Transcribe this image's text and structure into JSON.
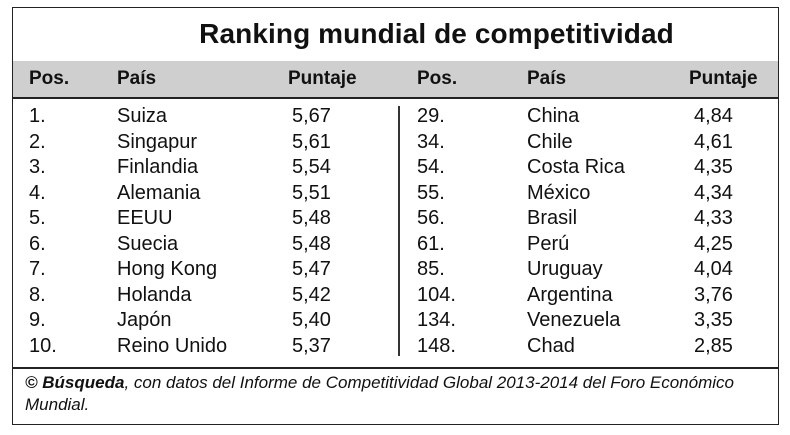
{
  "title": "Ranking mundial de competitividad",
  "headers": {
    "pos": "Pos.",
    "pais": "País",
    "puntaje": "Puntaje"
  },
  "left_rows": [
    {
      "pos": "1.",
      "pais": "Suiza",
      "puntaje": "5,67"
    },
    {
      "pos": "2.",
      "pais": "Singapur",
      "puntaje": "5,61"
    },
    {
      "pos": "3.",
      "pais": "Finlandia",
      "puntaje": "5,54"
    },
    {
      "pos": "4.",
      "pais": "Alemania",
      "puntaje": "5,51"
    },
    {
      "pos": "5.",
      "pais": "EEUU",
      "puntaje": "5,48"
    },
    {
      "pos": "6.",
      "pais": "Suecia",
      "puntaje": "5,48"
    },
    {
      "pos": "7.",
      "pais": "Hong Kong",
      "puntaje": "5,47"
    },
    {
      "pos": "8.",
      "pais": "Holanda",
      "puntaje": "5,42"
    },
    {
      "pos": "9.",
      "pais": "Japón",
      "puntaje": "5,40"
    },
    {
      "pos": "10.",
      "pais": "Reino Unido",
      "puntaje": "5,37"
    }
  ],
  "right_rows": [
    {
      "pos": "29.",
      "pais": "China",
      "puntaje": "4,84"
    },
    {
      "pos": "34.",
      "pais": "Chile",
      "puntaje": "4,61"
    },
    {
      "pos": "54.",
      "pais": "Costa Rica",
      "puntaje": "4,35"
    },
    {
      "pos": "55.",
      "pais": "México",
      "puntaje": "4,34"
    },
    {
      "pos": "56.",
      "pais": "Brasil",
      "puntaje": "4,33"
    },
    {
      "pos": "61.",
      "pais": "Perú",
      "puntaje": "4,25"
    },
    {
      "pos": "85.",
      "pais": "Uruguay",
      "puntaje": "4,04"
    },
    {
      "pos": "104.",
      "pais": "Argentina",
      "puntaje": "3,76"
    },
    {
      "pos": "134.",
      "pais": "Venezuela",
      "puntaje": "3,35"
    },
    {
      "pos": "148.",
      "pais": "Chad",
      "puntaje": "2,85"
    }
  ],
  "footer": {
    "copyright": "©",
    "source": "Búsqueda",
    "text": ", con datos del Informe de Competitividad Global 2013-2014 del Foro Económico Mundial."
  },
  "colors": {
    "header_band": "#cfcfcf",
    "text": "#111111",
    "border": "#222222"
  }
}
